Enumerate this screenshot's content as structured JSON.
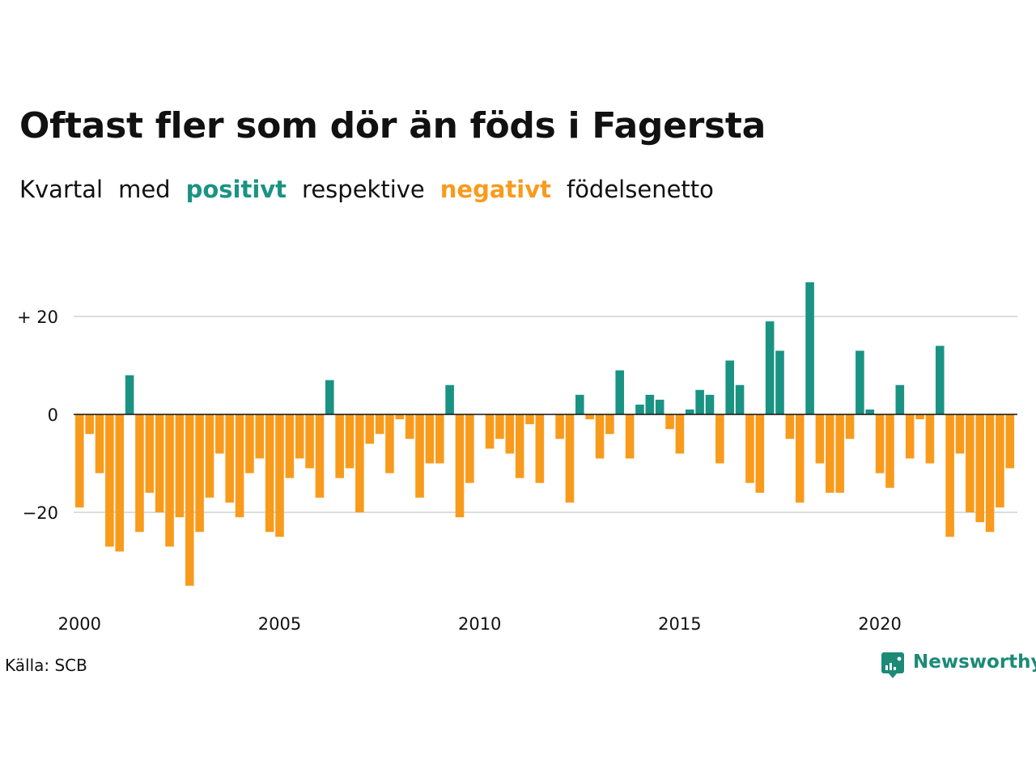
{
  "title": "Oftast fler som dör än föds i Fagersta",
  "subtitle": {
    "parts": [
      {
        "text": "Kvartal",
        "role": "plain"
      },
      {
        "text": "med",
        "role": "plain"
      },
      {
        "text": "positivt",
        "role": "positive"
      },
      {
        "text": "respektive",
        "role": "plain"
      },
      {
        "text": "negativt",
        "role": "negative"
      },
      {
        "text": "födelsenetto",
        "role": "plain"
      }
    ]
  },
  "source": "Källa: SCB",
  "brand": {
    "name": "Newsworthy",
    "icon": "newsworthy-logo-icon",
    "color": "#1b8a77"
  },
  "colors": {
    "positive": "#1a9383",
    "negative": "#f89b1c",
    "text": "#111111",
    "grid": "#dddddd"
  },
  "chart_data": {
    "type": "bar",
    "x_start": "2000-Q1",
    "periodicity": "quarter",
    "x_ticks": [
      {
        "value": "2000-Q1",
        "label": "2000"
      },
      {
        "value": "2005-Q1",
        "label": "2005"
      },
      {
        "value": "2010-Q1",
        "label": "2010"
      },
      {
        "value": "2015-Q1",
        "label": "2015"
      },
      {
        "value": "2020-Q1",
        "label": "2020"
      }
    ],
    "y_ticks": [
      {
        "value": 20,
        "label": "+ 20"
      },
      {
        "value": 0,
        "label": "0"
      },
      {
        "value": -20,
        "label": "−20"
      }
    ],
    "ylim": [
      -35,
      27
    ],
    "grid": true,
    "values": [
      -19,
      -4,
      -12,
      -27,
      -28,
      8,
      -24,
      -16,
      -20,
      -27,
      -21,
      -35,
      -24,
      -17,
      -8,
      -18,
      -21,
      -12,
      -9,
      -24,
      -25,
      -13,
      -9,
      -11,
      -17,
      7,
      -13,
      -11,
      -20,
      -6,
      -4,
      -12,
      -1,
      -5,
      -17,
      -10,
      -10,
      6,
      -21,
      -14,
      0,
      -7,
      -5,
      -8,
      -13,
      -2,
      -14,
      0,
      -5,
      -18,
      4,
      -1,
      -9,
      -4,
      9,
      -9,
      2,
      4,
      3,
      -3,
      -8,
      1,
      5,
      4,
      -10,
      11,
      6,
      -14,
      -16,
      19,
      13,
      -5,
      -18,
      27,
      -10,
      -16,
      -16,
      -5,
      13,
      1,
      -12,
      -15,
      6,
      -9,
      -1,
      -10,
      14,
      -25,
      -8,
      -20,
      -22,
      -24,
      -19,
      -11
    ]
  }
}
